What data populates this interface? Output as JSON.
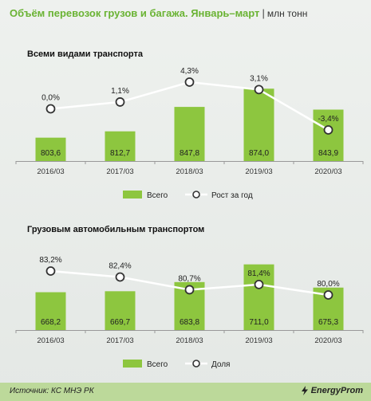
{
  "header": {
    "title": "Объём перевозок грузов и багажа. Январь–март",
    "separator": "|",
    "unit": "млн тонн"
  },
  "footer": {
    "source": "Источник: КС МНЭ РК",
    "brand": "EnergyProm"
  },
  "colors": {
    "bar": "#8dc63f",
    "line": "#ffffff",
    "axis_text": "#333333",
    "title": "#6ab333"
  },
  "chart_data": [
    {
      "type": "bar",
      "title": "Всеми видами транспорта",
      "categories": [
        "2016/03",
        "2017/03",
        "2018/03",
        "2019/03",
        "2020/03"
      ],
      "series": [
        {
          "name": "Всего",
          "type": "bar",
          "values": [
            803.6,
            812.7,
            847.8,
            874.0,
            843.9
          ],
          "labels": [
            "803,6",
            "812,7",
            "847,8",
            "874,0",
            "843,9"
          ]
        },
        {
          "name": "Рост за год",
          "type": "line",
          "values": [
            0.0,
            1.1,
            4.3,
            3.1,
            -3.4
          ],
          "labels": [
            "0,0%",
            "1,1%",
            "4,3%",
            "3,1%",
            "-3,4%"
          ]
        }
      ],
      "legend": "bottom"
    },
    {
      "type": "bar",
      "title": "Грузовым автомобильным транспортом",
      "categories": [
        "2016/03",
        "2017/03",
        "2018/03",
        "2019/03",
        "2020/03"
      ],
      "series": [
        {
          "name": "Всего",
          "type": "bar",
          "values": [
            668.2,
            669.7,
            683.8,
            711.0,
            675.3
          ],
          "labels": [
            "668,2",
            "669,7",
            "683,8",
            "711,0",
            "675,3"
          ]
        },
        {
          "name": "Доля",
          "type": "line",
          "values": [
            83.2,
            82.4,
            80.7,
            81.4,
            80.0
          ],
          "labels": [
            "83,2%",
            "82,4%",
            "80,7%",
            "81,4%",
            "80,0%"
          ]
        }
      ],
      "legend": "bottom"
    }
  ]
}
